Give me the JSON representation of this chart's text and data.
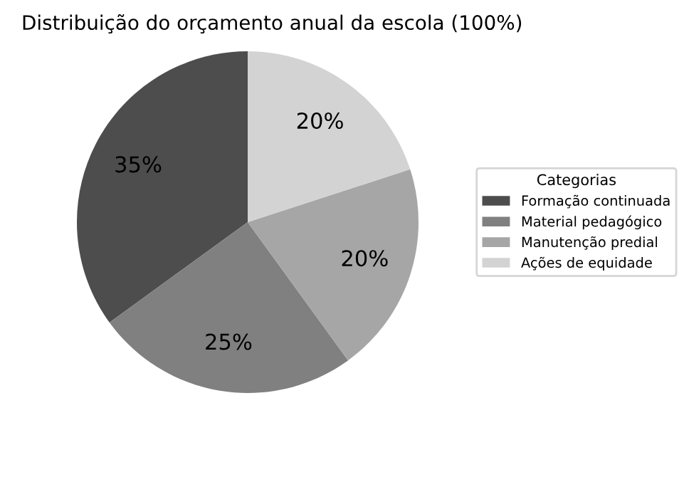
{
  "chart_data": {
    "type": "pie",
    "title": "Distribuição do orçamento anual da escola (100%)",
    "legend_title": "Categorias",
    "legend": "right",
    "categories": [
      "Formação continuada",
      "Material pedagógico",
      "Manutenção predial",
      "Ações de equidade"
    ],
    "values": [
      35,
      25,
      20,
      20
    ],
    "colors": [
      "#4d4d4d",
      "#808080",
      "#a6a6a6",
      "#d3d3d3"
    ],
    "value_labels": [
      "35%",
      "25%",
      "20%",
      "20%"
    ]
  }
}
